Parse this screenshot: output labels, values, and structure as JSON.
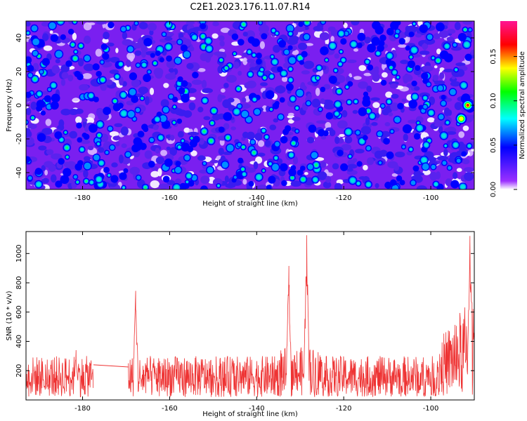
{
  "title": "C2E1.2023.176.11.07.R14",
  "chart_data": [
    {
      "type": "heatmap",
      "xlabel": "Height of straight line (km)",
      "ylabel": "Frequency (Hz)",
      "xlim": [
        -193,
        -90
      ],
      "ylim": [
        -50,
        50
      ],
      "xticks": [
        -180,
        -160,
        -140,
        -120,
        -100
      ],
      "yticks": [
        -40,
        -20,
        0,
        20,
        40
      ],
      "colorbar": {
        "label": "Normalized spectral amplitude",
        "range": [
          0.0,
          0.19
        ],
        "ticks": [
          0.0,
          0.05,
          0.1,
          0.15
        ],
        "colors": [
          "#ffffff",
          "#9b30ff",
          "#0000ff",
          "#00ffff",
          "#00ff00",
          "#ffff00",
          "#ff0000",
          "#ff1493"
        ]
      },
      "peaks": [
        {
          "x": -91.5,
          "y": 0,
          "value": 0.18
        },
        {
          "x": -93.0,
          "y": -8,
          "value": 0.14
        }
      ],
      "grid": false
    },
    {
      "type": "line",
      "xlabel": "Height of straight line (km)",
      "ylabel": "SNR (10 * v/v)",
      "xlim": [
        -193,
        -90
      ],
      "ylim": [
        0,
        1150
      ],
      "xticks": [
        -180,
        -160,
        -140,
        -120,
        -100
      ],
      "yticks": [
        200,
        400,
        600,
        800,
        1000
      ],
      "color": "#ee3333",
      "baseline": {
        "min": 20,
        "max": 300
      },
      "gap": [
        -177.5,
        -169.5
      ],
      "gap_line": [
        [
          -177.5,
          240
        ],
        [
          -169.5,
          225
        ]
      ],
      "spikes": [
        {
          "x": -181.5,
          "y": 340
        },
        {
          "x": -167.8,
          "y": 745
        },
        {
          "x": -132.6,
          "y": 915
        },
        {
          "x": -128.5,
          "y": 1125
        },
        {
          "x": -91.0,
          "y": 1120
        }
      ],
      "grid": false
    }
  ]
}
